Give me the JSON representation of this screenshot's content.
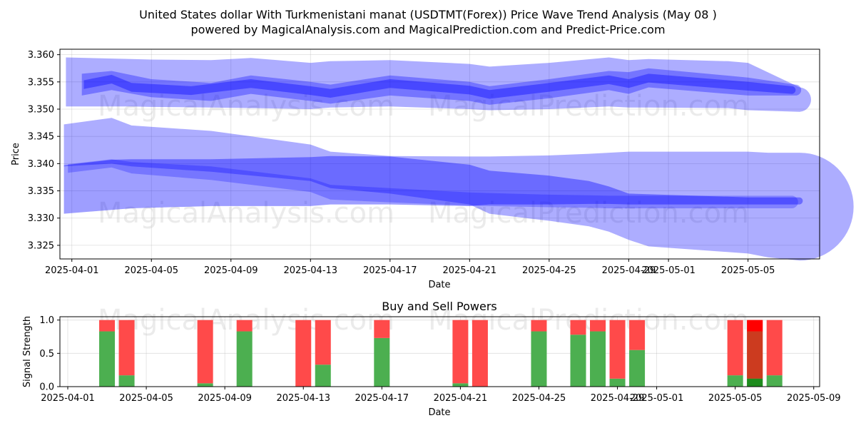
{
  "figure": {
    "title_line1": "United States dollar With Turkmenistani manat (USDTMT(Forex)) Price Wave Trend Analysis (May 08 )",
    "title_line2": "powered by MagicalAnalysis.com and MagicalPrediction.com and Predict-Price.com",
    "watermarks": [
      "MagicalAnalysis.com",
      "MagicalPrediction.com"
    ]
  },
  "chart_data": [
    {
      "type": "area",
      "title": "United States dollar With Turkmenistani manat (USDTMT(Forex)) Price Wave Trend Analysis (May 08 )",
      "xlabel": "Date",
      "ylabel": "Price",
      "x_range_days": [
        -0.6,
        37.6
      ],
      "ylim": [
        3.3225,
        3.361
      ],
      "x_ticks": [
        {
          "day": 0,
          "label": "2025-04-01"
        },
        {
          "day": 4,
          "label": "2025-04-05"
        },
        {
          "day": 8,
          "label": "2025-04-09"
        },
        {
          "day": 12,
          "label": "2025-04-13"
        },
        {
          "day": 16,
          "label": "2025-04-17"
        },
        {
          "day": 20,
          "label": "2025-04-21"
        },
        {
          "day": 24,
          "label": "2025-04-25"
        },
        {
          "day": 28,
          "label": "2025-04-29"
        },
        {
          "day": 30,
          "label": "2025-05-01"
        },
        {
          "day": 34,
          "label": "2025-05-05"
        }
      ],
      "y_ticks": [
        3.325,
        3.33,
        3.335,
        3.34,
        3.345,
        3.35,
        3.355,
        3.36
      ],
      "y_tick_labels": [
        "3.325",
        "3.330",
        "3.335",
        "3.340",
        "3.345",
        "3.350",
        "3.355",
        "3.360"
      ],
      "color": "#0000ff",
      "grid": true,
      "series": [
        {
          "name": "upper wave outer",
          "days": [
            -0.3,
            3,
            4,
            7,
            9,
            12,
            13,
            16,
            20,
            21,
            24,
            27,
            28,
            29,
            33,
            34,
            36.6
          ],
          "upper": [
            3.3595,
            3.3592,
            3.3591,
            3.359,
            3.3594,
            3.3585,
            3.3588,
            3.359,
            3.3583,
            3.3578,
            3.3585,
            3.3595,
            3.359,
            3.3592,
            3.3588,
            3.3585,
            3.354
          ],
          "lower": [
            3.3505,
            3.3505,
            3.3504,
            3.3503,
            3.3502,
            3.35,
            3.3503,
            3.3505,
            3.35,
            3.3498,
            3.35,
            3.3505,
            3.3503,
            3.3503,
            3.3502,
            3.3498,
            3.3495
          ]
        },
        {
          "name": "upper wave core",
          "days": [
            0.5,
            2,
            4,
            7,
            9,
            12,
            13,
            16,
            20,
            21,
            24,
            27,
            28,
            29,
            34,
            36.4
          ],
          "upper": [
            3.3565,
            3.357,
            3.3555,
            3.3548,
            3.3562,
            3.355,
            3.3545,
            3.3562,
            3.355,
            3.3542,
            3.3555,
            3.357,
            3.3568,
            3.3575,
            3.3558,
            3.3545
          ],
          "lower": [
            3.3525,
            3.3535,
            3.3522,
            3.3515,
            3.3528,
            3.3515,
            3.351,
            3.3525,
            3.3515,
            3.3508,
            3.352,
            3.3535,
            3.3528,
            3.354,
            3.3525,
            3.3525
          ]
        },
        {
          "name": "upper wave center",
          "days": [
            0.6,
            2,
            3,
            6,
            9,
            12,
            13,
            16,
            20,
            21,
            24,
            27,
            28,
            29,
            34,
            36.2
          ],
          "upper": [
            3.3553,
            3.3563,
            3.3548,
            3.3542,
            3.3555,
            3.3542,
            3.3537,
            3.3555,
            3.3543,
            3.3535,
            3.3548,
            3.3562,
            3.3555,
            3.3565,
            3.355,
            3.3542
          ],
          "lower": [
            3.3537,
            3.3547,
            3.3532,
            3.3526,
            3.3539,
            3.3526,
            3.3521,
            3.3539,
            3.3527,
            3.3519,
            3.3532,
            3.3546,
            3.3539,
            3.3549,
            3.3534,
            3.3528
          ]
        },
        {
          "name": "lower wave outer",
          "days": [
            -0.4,
            2,
            3,
            7,
            12,
            13,
            16,
            20,
            21,
            24,
            26,
            27,
            28,
            29,
            34,
            35,
            36.6
          ],
          "upper": [
            3.3472,
            3.3484,
            3.347,
            3.346,
            3.3435,
            3.3422,
            3.3414,
            3.3413,
            3.3413,
            3.3415,
            3.3418,
            3.342,
            3.3422,
            3.3422,
            3.3422,
            3.342,
            3.342
          ],
          "lower": [
            3.3395,
            3.34,
            3.3395,
            3.3385,
            3.3368,
            3.3355,
            3.3345,
            3.3325,
            3.3308,
            3.3295,
            3.3285,
            3.3275,
            3.326,
            3.3248,
            3.3235,
            3.3228,
            3.3222
          ]
        },
        {
          "name": "lower wave inner",
          "days": [
            -0.4,
            2,
            3,
            7,
            12,
            13,
            16,
            20,
            21,
            24,
            26,
            27,
            28,
            34,
            36.6
          ],
          "upper": [
            3.3397,
            3.3407,
            3.3408,
            3.3408,
            3.3412,
            3.3414,
            3.3413,
            3.3398,
            3.3387,
            3.3378,
            3.3368,
            3.3358,
            3.3345,
            3.3338,
            3.3338
          ],
          "lower": [
            3.3308,
            3.3315,
            3.3318,
            3.3322,
            3.3322,
            3.3325,
            3.3325,
            3.3322,
            3.3325,
            3.3325,
            3.3326,
            3.3326,
            3.3325,
            3.3325,
            3.3325
          ]
        },
        {
          "name": "lower wave center",
          "days": [
            -0.2,
            2,
            3,
            7,
            12,
            13,
            16,
            20,
            21,
            24,
            26,
            27,
            29,
            36.2
          ],
          "upper": [
            3.3399,
            3.3408,
            3.3403,
            3.3395,
            3.3373,
            3.3361,
            3.3355,
            3.3347,
            3.3346,
            3.3343,
            3.3342,
            3.3341,
            3.3341,
            3.3341
          ],
          "lower": [
            3.3383,
            3.3393,
            3.3382,
            3.337,
            3.3348,
            3.3334,
            3.3329,
            3.3323,
            3.3322,
            3.332,
            3.3319,
            3.3318,
            3.3318,
            3.3318
          ]
        }
      ]
    },
    {
      "type": "bar",
      "title": "Buy and Sell Powers",
      "xlabel": "Date",
      "ylabel": "Signal Strength",
      "x_range_days": [
        -0.4,
        38.3
      ],
      "ylim": [
        0,
        1.05
      ],
      "x_ticks": [
        {
          "day": 0,
          "label": "2025-04-01"
        },
        {
          "day": 4,
          "label": "2025-04-05"
        },
        {
          "day": 8,
          "label": "2025-04-09"
        },
        {
          "day": 12,
          "label": "2025-04-13"
        },
        {
          "day": 16,
          "label": "2025-04-17"
        },
        {
          "day": 20,
          "label": "2025-04-21"
        },
        {
          "day": 24,
          "label": "2025-04-25"
        },
        {
          "day": 28,
          "label": "2025-04-29"
        },
        {
          "day": 30,
          "label": "2025-05-01"
        },
        {
          "day": 34,
          "label": "2025-05-05"
        },
        {
          "day": 38,
          "label": "2025-05-09"
        }
      ],
      "y_ticks": [
        0.0,
        0.5,
        1.0
      ],
      "y_tick_labels": [
        "0.0",
        "0.5",
        "1.0"
      ],
      "grid": true,
      "categories": [
        "2025-04-03",
        "2025-04-04",
        "2025-04-08",
        "2025-04-10",
        "2025-04-13",
        "2025-04-14",
        "2025-04-17",
        "2025-04-21",
        "2025-04-22",
        "2025-04-25",
        "2025-04-27",
        "2025-04-28",
        "2025-04-29",
        "2025-04-30",
        "2025-05-05",
        "2025-05-06",
        "2025-05-07"
      ],
      "days": [
        2,
        3,
        7,
        9,
        12,
        13,
        16,
        20,
        21,
        24,
        26,
        27,
        28,
        29,
        34,
        35,
        36
      ],
      "series": [
        {
          "name": "Buy",
          "color": "#4caf50",
          "values": [
            0.83,
            0.17,
            0.05,
            0.83,
            0.0,
            0.33,
            0.73,
            0.05,
            0.0,
            0.83,
            0.78,
            0.83,
            0.12,
            0.55,
            0.17,
            0.12,
            0.17
          ]
        },
        {
          "name": "Sell",
          "color": "#ff4a4a",
          "values": [
            0.17,
            0.83,
            0.95,
            0.17,
            1.0,
            0.67,
            0.27,
            0.95,
            1.0,
            0.17,
            0.22,
            0.17,
            0.88,
            0.45,
            0.83,
            0.88,
            0.83
          ]
        }
      ],
      "overlay_bar": {
        "day": 35,
        "buy_color": "#1e8c1e",
        "sell_color": "#ff0000",
        "buy": 0.12,
        "sell": 0.88,
        "mixed_color": "#cc3b1f"
      }
    }
  ]
}
